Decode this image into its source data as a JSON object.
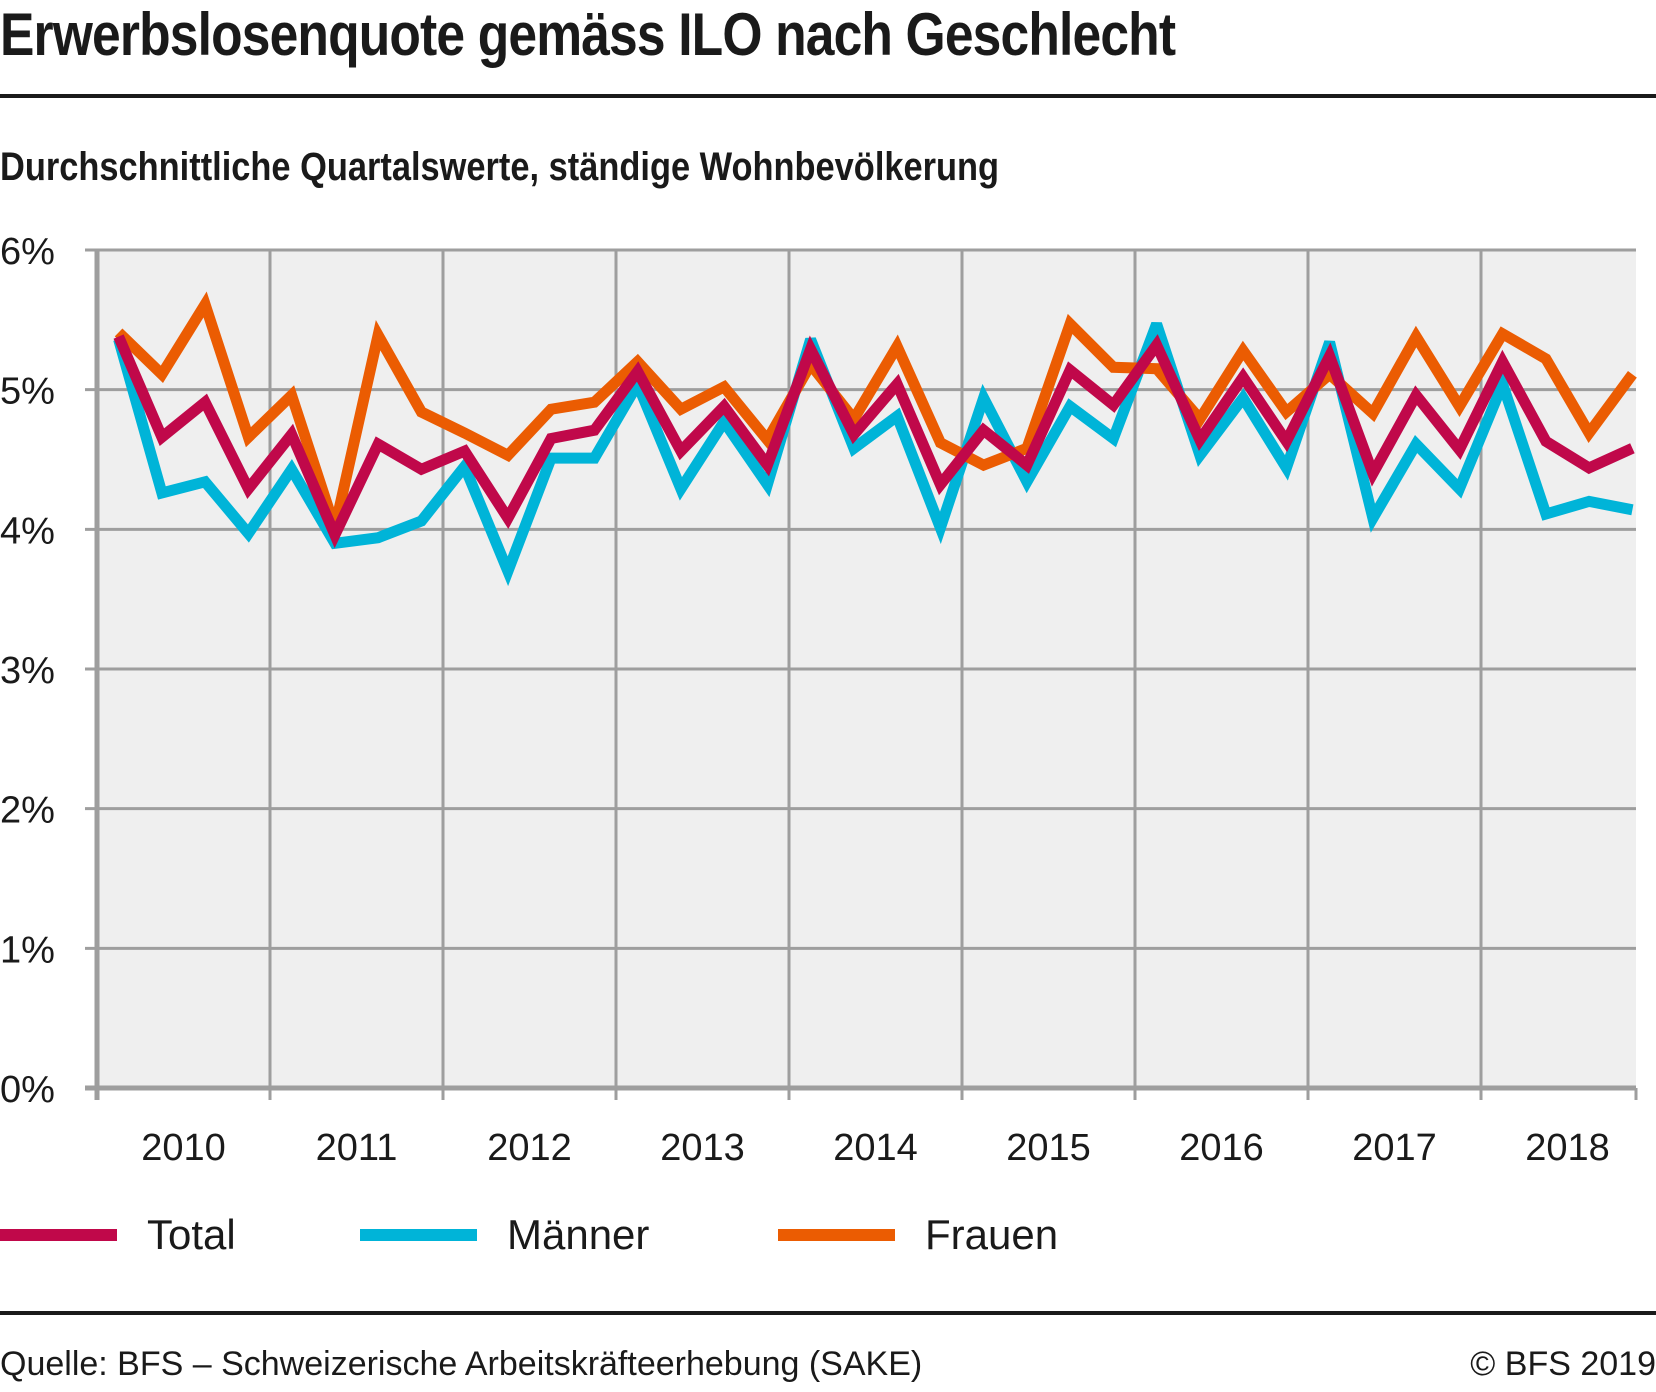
{
  "header": {
    "title": "Erwerbslosenquote gemäss ILO nach Geschlecht",
    "subtitle": "Durchschnittliche Quartalswerte, ständige Wohnbevölkerung"
  },
  "footer": {
    "source": "Quelle: BFS – Schweizerische Arbeitskräfteerhebung (SAKE)",
    "copyright": "© BFS 2019"
  },
  "chart_data": {
    "type": "line",
    "title": "Erwerbslosenquote gemäss ILO nach Geschlecht",
    "subtitle": "Durchschnittliche Quartalswerte, ständige Wohnbevölkerung",
    "xlabel": "",
    "ylabel": "",
    "ylim": [
      0,
      6
    ],
    "yticks": [
      0,
      1,
      2,
      3,
      4,
      5,
      6
    ],
    "ytick_labels": [
      "0%",
      "1%",
      "2%",
      "3%",
      "4%",
      "5%",
      "6%"
    ],
    "x_categories": [
      "2010",
      "2011",
      "2012",
      "2013",
      "2014",
      "2015",
      "2016",
      "2017",
      "2018"
    ],
    "periods_per_category": 4,
    "x": [
      "2010 Q1",
      "2010 Q2",
      "2010 Q3",
      "2010 Q4",
      "2011 Q1",
      "2011 Q2",
      "2011 Q3",
      "2011 Q4",
      "2012 Q1",
      "2012 Q2",
      "2012 Q3",
      "2012 Q4",
      "2013 Q1",
      "2013 Q2",
      "2013 Q3",
      "2013 Q4",
      "2014 Q1",
      "2014 Q2",
      "2014 Q3",
      "2014 Q4",
      "2015 Q1",
      "2015 Q2",
      "2015 Q3",
      "2015 Q4",
      "2016 Q1",
      "2016 Q2",
      "2016 Q3",
      "2016 Q4",
      "2017 Q1",
      "2017 Q2",
      "2017 Q3",
      "2017 Q4",
      "2018 Q1",
      "2018 Q2",
      "2018 Q3",
      "2018 Q4"
    ],
    "grid": true,
    "legend_position": "bottom-left",
    "series": [
      {
        "name": "Total",
        "color": "#c0084a",
        "values": [
          5.38,
          4.66,
          4.91,
          4.29,
          4.68,
          3.96,
          4.61,
          4.43,
          4.56,
          4.08,
          4.65,
          4.71,
          5.13,
          4.56,
          4.88,
          4.46,
          5.29,
          4.68,
          5.04,
          4.32,
          4.71,
          4.46,
          5.14,
          4.89,
          5.32,
          4.64,
          5.09,
          4.63,
          5.24,
          4.4,
          4.96,
          4.57,
          5.2,
          4.63,
          4.44,
          4.58
        ]
      },
      {
        "name": "Männer",
        "color": "#00b4d8",
        "values": [
          5.36,
          4.26,
          4.34,
          3.97,
          4.43,
          3.9,
          3.94,
          4.06,
          4.45,
          3.7,
          4.51,
          4.51,
          5.04,
          4.29,
          4.77,
          4.32,
          5.36,
          4.58,
          4.81,
          4.01,
          4.94,
          4.34,
          4.88,
          4.65,
          5.47,
          4.53,
          4.94,
          4.44,
          5.34,
          4.08,
          4.61,
          4.29,
          5.04,
          4.11,
          4.2,
          4.14
        ]
      },
      {
        "name": "Frauen",
        "color": "#eb5c02",
        "values": [
          5.41,
          5.11,
          5.61,
          4.66,
          4.96,
          4.01,
          5.39,
          4.84,
          4.69,
          4.53,
          4.86,
          4.91,
          5.2,
          4.86,
          5.02,
          4.64,
          5.18,
          4.79,
          5.31,
          4.62,
          4.46,
          4.58,
          5.47,
          5.16,
          5.15,
          4.79,
          5.28,
          4.84,
          5.11,
          4.83,
          5.38,
          4.88,
          5.4,
          5.22,
          4.69,
          5.11
        ]
      }
    ]
  }
}
